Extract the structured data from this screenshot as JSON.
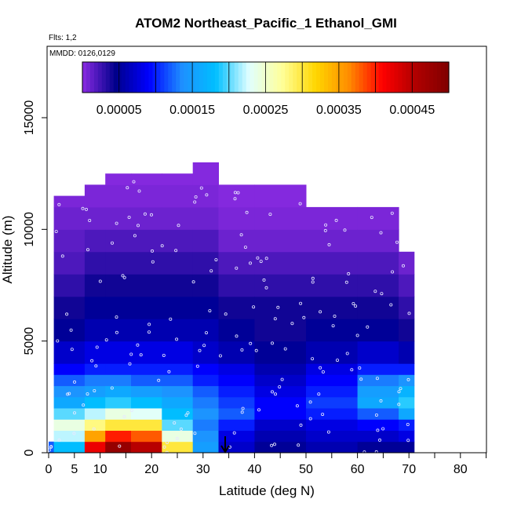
{
  "chart_data": {
    "type": "heatmap",
    "title": "ATOM2 Northeast_Pacific_1 Ethanol_GMI",
    "flights_note": "Flts: 1,2",
    "dates_note": "MMDD: 0126,0129",
    "xlabel": "Latitude (deg N)",
    "ylabel": "Altitude (m)",
    "xlim": [
      0,
      85
    ],
    "ylim": [
      0,
      17500
    ],
    "x_ticks": [
      0,
      5,
      10,
      20,
      30,
      40,
      50,
      60,
      70,
      80
    ],
    "x_ticks_unlabeled": [
      15,
      25,
      35,
      45,
      55,
      65,
      75,
      85
    ],
    "y_ticks": [
      0,
      5000,
      10000,
      15000
    ],
    "colorbar": {
      "range": [
        0,
        0.0005
      ],
      "tick_values": [
        5e-05,
        0.00015,
        0.00025,
        0.00035,
        0.00045
      ],
      "tick_labels": [
        "0.00005",
        "0.00015",
        "0.00025",
        "0.00035",
        "0.00045"
      ],
      "colors": [
        "#8a2be2",
        "#00008b",
        "#0000ff",
        "#1e90ff",
        "#00bfff",
        "#e0ffff",
        "#ffff99",
        "#ffd700",
        "#ff8c00",
        "#ff0000",
        "#b00000",
        "#800000"
      ]
    },
    "alt_bins": [
      0,
      500,
      1000,
      1500,
      2000,
      2500,
      3000,
      3500,
      4000,
      5000,
      6000,
      7000,
      8000,
      9000,
      10000,
      11000,
      12000,
      13000
    ],
    "columns": [
      {
        "lat": [
          0,
          1
        ],
        "top": 500,
        "v": [
          0.00012
        ]
      },
      {
        "lat": [
          1,
          7
        ],
        "top": 11500,
        "v": [
          0.00018,
          0.00022,
          0.00024,
          0.0002,
          0.00016,
          0.00014,
          0.00012,
          9e-05,
          7e-05,
          5e-05,
          4e-05,
          3e-05,
          2e-05,
          1.5e-05,
          1e-05,
          5e-06
        ]
      },
      {
        "lat": [
          7,
          11
        ],
        "top": 12000,
        "v": [
          0.00042,
          0.00035,
          0.00028,
          0.00022,
          0.00018,
          0.00015,
          0.00013,
          0.0001,
          8e-05,
          6e-05,
          5e-05,
          4e-05,
          3e-05,
          2e-05,
          1e-05,
          5e-06,
          2e-06
        ]
      },
      {
        "lat": [
          11,
          16
        ],
        "top": 12500,
        "v": [
          0.00048,
          0.0004,
          0.0003,
          0.00024,
          0.00019,
          0.00016,
          0.00013,
          0.0001,
          8e-05,
          6e-05,
          5e-05,
          4e-05,
          3e-05,
          2e-05,
          1e-05,
          5e-06,
          2e-06
        ]
      },
      {
        "lat": [
          16,
          22
        ],
        "top": 12500,
        "v": [
          0.00045,
          0.00038,
          0.0003,
          0.00023,
          0.00018,
          0.00015,
          0.00012,
          0.0001,
          8e-05,
          6e-05,
          5e-05,
          4e-05,
          3e-05,
          2e-05,
          1e-05,
          5e-06,
          2e-06
        ]
      },
      {
        "lat": [
          22,
          28
        ],
        "top": 12500,
        "v": [
          0.0003,
          0.00024,
          0.0002,
          0.00018,
          0.00016,
          0.00014,
          0.00012,
          0.0001,
          8e-05,
          6e-05,
          5e-05,
          4e-05,
          3e-05,
          2e-05,
          1e-05,
          5e-06,
          2e-06
        ]
      },
      {
        "lat": [
          28,
          33
        ],
        "top": 13000,
        "v": [
          0.00015,
          0.00014,
          0.00013,
          0.00014,
          0.00013,
          0.00012,
          0.0001,
          9e-05,
          7e-05,
          6e-05,
          5e-05,
          4e-05,
          3e-05,
          2e-05,
          1e-05,
          5e-06,
          2e-06
        ]
      },
      {
        "lat": [
          33,
          40
        ],
        "top": 12000,
        "v": [
          7e-05,
          8e-05,
          0.0001,
          0.00012,
          0.00011,
          0.0001,
          9e-05,
          8e-05,
          6e-05,
          5e-05,
          4e-05,
          3e-05,
          2e-05,
          1e-05,
          5e-06,
          2e-06
        ]
      },
      {
        "lat": [
          40,
          50
        ],
        "top": 12000,
        "v": [
          5e-05,
          6e-05,
          7e-05,
          9e-05,
          9e-05,
          8e-05,
          7e-05,
          6e-05,
          5e-05,
          4e-05,
          4e-05,
          3e-05,
          2e-05,
          1e-05,
          5e-06,
          2e-06
        ]
      },
      {
        "lat": [
          50,
          60
        ],
        "top": 11000,
        "v": [
          6e-05,
          7e-05,
          8e-05,
          0.0001,
          0.00011,
          0.0001,
          9e-05,
          8e-05,
          6e-05,
          5e-05,
          4e-05,
          3e-05,
          2e-05,
          1e-05,
          5e-06
        ]
      },
      {
        "lat": [
          60,
          68
        ],
        "top": 11000,
        "v": [
          5e-05,
          7e-05,
          9e-05,
          0.00012,
          0.00016,
          0.00015,
          0.00013,
          0.0001,
          7e-05,
          5e-05,
          4e-05,
          3e-05,
          2e-05,
          1e-05,
          5e-06
        ]
      },
      {
        "lat": [
          68,
          71
        ],
        "top": 9000,
        "v": [
          5e-05,
          8e-05,
          0.0001,
          0.00016,
          0.00019,
          0.00017,
          0.00014,
          0.0001,
          6e-05,
          4e-05,
          3e-05,
          2e-05,
          1e-05
        ]
      }
    ]
  }
}
